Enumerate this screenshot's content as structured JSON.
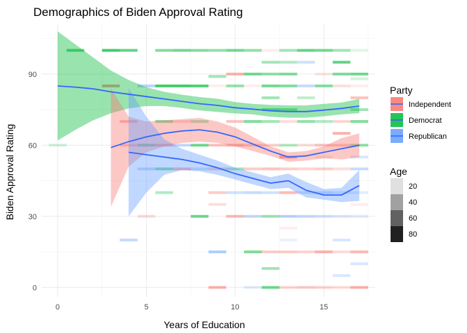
{
  "chart_data": {
    "type": "scatter",
    "title": "Demographics of Biden Approval Rating",
    "xlabel": "Years of Education",
    "ylabel": "Biden Approval Rating",
    "xlim": [
      -0.9,
      17.9
    ],
    "ylim": [
      -4,
      111
    ],
    "x_ticks": [
      0,
      5,
      10,
      15
    ],
    "y_ticks": [
      0,
      30,
      60,
      90
    ],
    "grid": true,
    "legend_position": "right",
    "legends": {
      "color": {
        "title": "Party",
        "entries": [
          {
            "label": "Independent",
            "color": "#F8766D"
          },
          {
            "label": "Democrat",
            "color": "#00BA38"
          },
          {
            "label": "Republican",
            "color": "#619CFF"
          }
        ]
      },
      "alpha": {
        "title": "Age",
        "entries": [
          {
            "label": "20",
            "value": 20
          },
          {
            "label": "40",
            "value": 40
          },
          {
            "label": "60",
            "value": 60
          },
          {
            "label": "80",
            "value": 80
          }
        ]
      }
    },
    "points": [
      {
        "x": 0,
        "y": 60,
        "party": "Democrat",
        "age": 25
      },
      {
        "x": 1,
        "y": 100,
        "party": "Democrat",
        "age": 60
      },
      {
        "x": 3,
        "y": 100,
        "party": "Democrat",
        "age": 70
      },
      {
        "x": 4,
        "y": 100,
        "party": "Democrat",
        "age": 60
      },
      {
        "x": 6,
        "y": 100,
        "party": "Democrat",
        "age": 50
      },
      {
        "x": 7,
        "y": 100,
        "party": "Democrat",
        "age": 55
      },
      {
        "x": 8,
        "y": 100,
        "party": "Democrat",
        "age": 50
      },
      {
        "x": 9,
        "y": 100,
        "party": "Democrat",
        "age": 45
      },
      {
        "x": 10,
        "y": 100,
        "party": "Democrat",
        "age": 55
      },
      {
        "x": 11,
        "y": 100,
        "party": "Democrat",
        "age": 45
      },
      {
        "x": 12,
        "y": 100,
        "party": "Independent",
        "age": 20
      },
      {
        "x": 13,
        "y": 100,
        "party": "Democrat",
        "age": 40
      },
      {
        "x": 14,
        "y": 100,
        "party": "Democrat",
        "age": 60
      },
      {
        "x": 15,
        "y": 100,
        "party": "Democrat",
        "age": 55
      },
      {
        "x": 16,
        "y": 100,
        "party": "Democrat",
        "age": 40
      },
      {
        "x": 17,
        "y": 100,
        "party": "Democrat",
        "age": 20
      },
      {
        "x": 12,
        "y": 95,
        "party": "Democrat",
        "age": 40
      },
      {
        "x": 13,
        "y": 95,
        "party": "Democrat",
        "age": 35
      },
      {
        "x": 14,
        "y": 95,
        "party": "Republican",
        "age": 35
      },
      {
        "x": 16,
        "y": 95,
        "party": "Democrat",
        "age": 60
      },
      {
        "x": 10,
        "y": 90,
        "party": "Independent",
        "age": 55
      },
      {
        "x": 11,
        "y": 90,
        "party": "Democrat",
        "age": 55
      },
      {
        "x": 12,
        "y": 90,
        "party": "Democrat",
        "age": 45
      },
      {
        "x": 13,
        "y": 90,
        "party": "Democrat",
        "age": 50
      },
      {
        "x": 15,
        "y": 90,
        "party": "Independent",
        "age": 25
      },
      {
        "x": 16,
        "y": 90,
        "party": "Democrat",
        "age": 50
      },
      {
        "x": 17,
        "y": 90,
        "party": "Democrat",
        "age": 55
      },
      {
        "x": 9,
        "y": 89,
        "party": "Democrat",
        "age": 40
      },
      {
        "x": 17,
        "y": 88,
        "party": "Democrat",
        "age": 25
      },
      {
        "x": 3,
        "y": 85,
        "party": "Independent",
        "age": 70
      },
      {
        "x": 5,
        "y": 85,
        "party": "Republican",
        "age": 45
      },
      {
        "x": 6,
        "y": 85,
        "party": "Democrat",
        "age": 70
      },
      {
        "x": 7,
        "y": 85,
        "party": "Democrat",
        "age": 70
      },
      {
        "x": 8,
        "y": 85,
        "party": "Democrat",
        "age": 65
      },
      {
        "x": 9,
        "y": 85,
        "party": "Independent",
        "age": 20
      },
      {
        "x": 10,
        "y": 85,
        "party": "Democrat",
        "age": 45
      },
      {
        "x": 11,
        "y": 85,
        "party": "Independent",
        "age": 20
      },
      {
        "x": 12,
        "y": 85,
        "party": "Democrat",
        "age": 55
      },
      {
        "x": 13,
        "y": 85,
        "party": "Democrat",
        "age": 50
      },
      {
        "x": 14,
        "y": 85,
        "party": "Republican",
        "age": 40
      },
      {
        "x": 15,
        "y": 85,
        "party": "Democrat",
        "age": 50
      },
      {
        "x": 16,
        "y": 85,
        "party": "Independent",
        "age": 30
      },
      {
        "x": 17,
        "y": 85,
        "party": "Independent",
        "age": 20
      },
      {
        "x": 12,
        "y": 80,
        "party": "Democrat",
        "age": 40
      },
      {
        "x": 14,
        "y": 80,
        "party": "Democrat",
        "age": 30
      },
      {
        "x": 17,
        "y": 80,
        "party": "Independent",
        "age": 45
      },
      {
        "x": 12,
        "y": 75,
        "party": "Democrat",
        "age": 50
      },
      {
        "x": 13,
        "y": 75,
        "party": "Democrat",
        "age": 45
      },
      {
        "x": 17,
        "y": 75,
        "party": "Democrat",
        "age": 40
      },
      {
        "x": 4,
        "y": 70,
        "party": "Independent",
        "age": 50
      },
      {
        "x": 6,
        "y": 70,
        "party": "Democrat",
        "age": 50
      },
      {
        "x": 7,
        "y": 70,
        "party": "Independent",
        "age": 35
      },
      {
        "x": 8,
        "y": 70,
        "party": "Democrat",
        "age": 40
      },
      {
        "x": 10,
        "y": 70,
        "party": "Independent",
        "age": 45
      },
      {
        "x": 11,
        "y": 70,
        "party": "Democrat",
        "age": 50
      },
      {
        "x": 12,
        "y": 70,
        "party": "Democrat",
        "age": 40
      },
      {
        "x": 13,
        "y": 70,
        "party": "Independent",
        "age": 30
      },
      {
        "x": 14,
        "y": 70,
        "party": "Democrat",
        "age": 45
      },
      {
        "x": 15,
        "y": 70,
        "party": "Democrat",
        "age": 35
      },
      {
        "x": 16,
        "y": 70,
        "party": "Independent",
        "age": 35
      },
      {
        "x": 17,
        "y": 70,
        "party": "Democrat",
        "age": 50
      },
      {
        "x": 16,
        "y": 65,
        "party": "Independent",
        "age": 55
      },
      {
        "x": 4,
        "y": 60,
        "party": "Independent",
        "age": 40
      },
      {
        "x": 5,
        "y": 60,
        "party": "Democrat",
        "age": 50
      },
      {
        "x": 6,
        "y": 60,
        "party": "Independent",
        "age": 55
      },
      {
        "x": 7,
        "y": 60,
        "party": "Republican",
        "age": 40
      },
      {
        "x": 8,
        "y": 60,
        "party": "Democrat",
        "age": 55
      },
      {
        "x": 9,
        "y": 60,
        "party": "Independent",
        "age": 45
      },
      {
        "x": 10,
        "y": 60,
        "party": "Independent",
        "age": 55
      },
      {
        "x": 11,
        "y": 60,
        "party": "Independent",
        "age": 40
      },
      {
        "x": 12,
        "y": 60,
        "party": "Independent",
        "age": 35
      },
      {
        "x": 13,
        "y": 60,
        "party": "Democrat",
        "age": 35
      },
      {
        "x": 14,
        "y": 60,
        "party": "Independent",
        "age": 30
      },
      {
        "x": 15,
        "y": 60,
        "party": "Independent",
        "age": 45
      },
      {
        "x": 16,
        "y": 60,
        "party": "Independent",
        "age": 40
      },
      {
        "x": 17,
        "y": 60,
        "party": "Democrat",
        "age": 45
      },
      {
        "x": 13,
        "y": 55,
        "party": "Independent",
        "age": 65
      },
      {
        "x": 15,
        "y": 55,
        "party": "Independent",
        "age": 25
      },
      {
        "x": 17,
        "y": 55,
        "party": "Republican",
        "age": 30
      },
      {
        "x": 5,
        "y": 50,
        "party": "Republican",
        "age": 40
      },
      {
        "x": 6,
        "y": 50,
        "party": "Democrat",
        "age": 50
      },
      {
        "x": 7,
        "y": 50,
        "party": "Independent",
        "age": 55
      },
      {
        "x": 8,
        "y": 50,
        "party": "Republican",
        "age": 35
      },
      {
        "x": 9,
        "y": 50,
        "party": "Independent",
        "age": 45
      },
      {
        "x": 10,
        "y": 50,
        "party": "Democrat",
        "age": 40
      },
      {
        "x": 11,
        "y": 50,
        "party": "Independent",
        "age": 40
      },
      {
        "x": 12,
        "y": 50,
        "party": "Independent",
        "age": 45
      },
      {
        "x": 13,
        "y": 50,
        "party": "Independent",
        "age": 40
      },
      {
        "x": 14,
        "y": 50,
        "party": "Independent",
        "age": 35
      },
      {
        "x": 15,
        "y": 50,
        "party": "Independent",
        "age": 40
      },
      {
        "x": 16,
        "y": 50,
        "party": "Independent",
        "age": 30
      },
      {
        "x": 17,
        "y": 50,
        "party": "Republican",
        "age": 40
      },
      {
        "x": 6,
        "y": 40,
        "party": "Democrat",
        "age": 35
      },
      {
        "x": 9,
        "y": 40,
        "party": "Independent",
        "age": 40
      },
      {
        "x": 10,
        "y": 40,
        "party": "Republican",
        "age": 35
      },
      {
        "x": 11,
        "y": 40,
        "party": "Republican",
        "age": 40
      },
      {
        "x": 12,
        "y": 40,
        "party": "Republican",
        "age": 35
      },
      {
        "x": 13,
        "y": 40,
        "party": "Independent",
        "age": 50
      },
      {
        "x": 14,
        "y": 40,
        "party": "Republican",
        "age": 35
      },
      {
        "x": 15,
        "y": 40,
        "party": "Republican",
        "age": 40
      },
      {
        "x": 16,
        "y": 40,
        "party": "Republican",
        "age": 30
      },
      {
        "x": 17,
        "y": 40,
        "party": "Republican",
        "age": 25
      },
      {
        "x": 9,
        "y": 35,
        "party": "Independent",
        "age": 30
      },
      {
        "x": 17,
        "y": 35,
        "party": "Independent",
        "age": 20
      },
      {
        "x": 5,
        "y": 30,
        "party": "Independent",
        "age": 30
      },
      {
        "x": 8,
        "y": 30,
        "party": "Democrat",
        "age": 55
      },
      {
        "x": 10,
        "y": 30,
        "party": "Independent",
        "age": 50
      },
      {
        "x": 11,
        "y": 30,
        "party": "Republican",
        "age": 40
      },
      {
        "x": 12,
        "y": 30,
        "party": "Democrat",
        "age": 40
      },
      {
        "x": 13,
        "y": 30,
        "party": "Republican",
        "age": 45
      },
      {
        "x": 14,
        "y": 30,
        "party": "Republican",
        "age": 40
      },
      {
        "x": 15,
        "y": 30,
        "party": "Republican",
        "age": 35
      },
      {
        "x": 16,
        "y": 30,
        "party": "Republican",
        "age": 30
      },
      {
        "x": 17,
        "y": 30,
        "party": "Republican",
        "age": 25
      },
      {
        "x": 13,
        "y": 25,
        "party": "Independent",
        "age": 20
      },
      {
        "x": 4,
        "y": 20,
        "party": "Republican",
        "age": 40
      },
      {
        "x": 13,
        "y": 20,
        "party": "Republican",
        "age": 20
      },
      {
        "x": 16,
        "y": 20,
        "party": "Republican",
        "age": 30
      },
      {
        "x": 9,
        "y": 15,
        "party": "Republican",
        "age": 50
      },
      {
        "x": 11,
        "y": 15,
        "party": "Democrat",
        "age": 50
      },
      {
        "x": 12,
        "y": 15,
        "party": "Independent",
        "age": 40
      },
      {
        "x": 13,
        "y": 15,
        "party": "Independent",
        "age": 40
      },
      {
        "x": 14,
        "y": 15,
        "party": "Independent",
        "age": 35
      },
      {
        "x": 15,
        "y": 15,
        "party": "Independent",
        "age": 55
      },
      {
        "x": 16,
        "y": 15,
        "party": "Independent",
        "age": 30
      },
      {
        "x": 17,
        "y": 15,
        "party": "Independent",
        "age": 50
      },
      {
        "x": 17,
        "y": 10,
        "party": "Republican",
        "age": 30
      },
      {
        "x": 12,
        "y": 8,
        "party": "Democrat",
        "age": 40
      },
      {
        "x": 16,
        "y": 5,
        "party": "Republican",
        "age": 30
      },
      {
        "x": 9,
        "y": 0,
        "party": "Independent",
        "age": 55
      },
      {
        "x": 11,
        "y": 0,
        "party": "Republican",
        "age": 25
      },
      {
        "x": 12,
        "y": 0,
        "party": "Democrat",
        "age": 55
      },
      {
        "x": 13,
        "y": 0,
        "party": "Independent",
        "age": 35
      },
      {
        "x": 14,
        "y": 0,
        "party": "Independent",
        "age": 40
      },
      {
        "x": 15,
        "y": 0,
        "party": "Independent",
        "age": 35
      },
      {
        "x": 16,
        "y": 0,
        "party": "Independent",
        "age": 30
      },
      {
        "x": 17,
        "y": 0,
        "party": "Independent",
        "age": 55
      }
    ],
    "smooth": [
      {
        "party": "Democrat",
        "x": [
          0,
          1,
          2,
          3,
          4,
          5,
          6,
          7,
          8,
          9,
          10,
          11,
          12,
          13,
          14,
          15,
          16,
          17
        ],
        "y": [
          85,
          84.5,
          83.8,
          82.5,
          81.5,
          80.5,
          79.5,
          78.5,
          77.5,
          76.8,
          75.8,
          75.2,
          74.5,
          74.2,
          74.2,
          74.8,
          75.5,
          76.5
        ],
        "lower": [
          62,
          66.5,
          70.5,
          73.5,
          75.5,
          76.5,
          76.5,
          75.7,
          74.7,
          74.0,
          73.4,
          73.0,
          72.0,
          71.6,
          71.6,
          72.2,
          73.0,
          73.5
        ],
        "upper": [
          108,
          102.5,
          97.0,
          91.5,
          87.5,
          84.5,
          82.5,
          81.3,
          80.3,
          79.6,
          78.2,
          77.4,
          77.0,
          76.8,
          76.8,
          77.4,
          78.0,
          79.5
        ]
      },
      {
        "party": "Independent",
        "x": [
          3,
          4,
          5,
          6,
          7,
          8,
          9,
          10,
          11,
          12,
          13,
          14,
          15,
          16,
          17
        ],
        "y": [
          59,
          61.5,
          63.5,
          65.0,
          66.0,
          66.5,
          65.5,
          63.5,
          60.5,
          57.5,
          55.0,
          55.5,
          57.0,
          58.5,
          60.0
        ],
        "lower": [
          34,
          51.0,
          57.0,
          59.5,
          61.0,
          61.5,
          61.0,
          59.5,
          57.5,
          55.5,
          53.0,
          53.5,
          54.5,
          54.0,
          55.0
        ],
        "upper": [
          84,
          72.0,
          70.0,
          70.5,
          71.0,
          71.5,
          70.0,
          67.5,
          63.5,
          59.5,
          57.0,
          57.5,
          59.5,
          63.0,
          65.0
        ]
      },
      {
        "party": "Republican",
        "x": [
          4,
          5,
          6,
          7,
          8,
          9,
          10,
          11,
          12,
          13,
          14,
          15,
          16,
          17
        ],
        "y": [
          57,
          56.0,
          55.0,
          54.0,
          52.5,
          50.5,
          48.0,
          46.0,
          44.0,
          45.0,
          41.0,
          39.0,
          39.0,
          43.0
        ],
        "lower": [
          30,
          40.0,
          47.5,
          49.5,
          49.0,
          47.5,
          45.5,
          43.5,
          41.5,
          42.0,
          38.0,
          37.0,
          36.0,
          36.5
        ],
        "upper": [
          84,
          72.0,
          62.5,
          58.5,
          56.0,
          53.5,
          50.5,
          48.5,
          46.5,
          48.0,
          44.5,
          41.5,
          42.0,
          49.5
        ]
      }
    ]
  }
}
